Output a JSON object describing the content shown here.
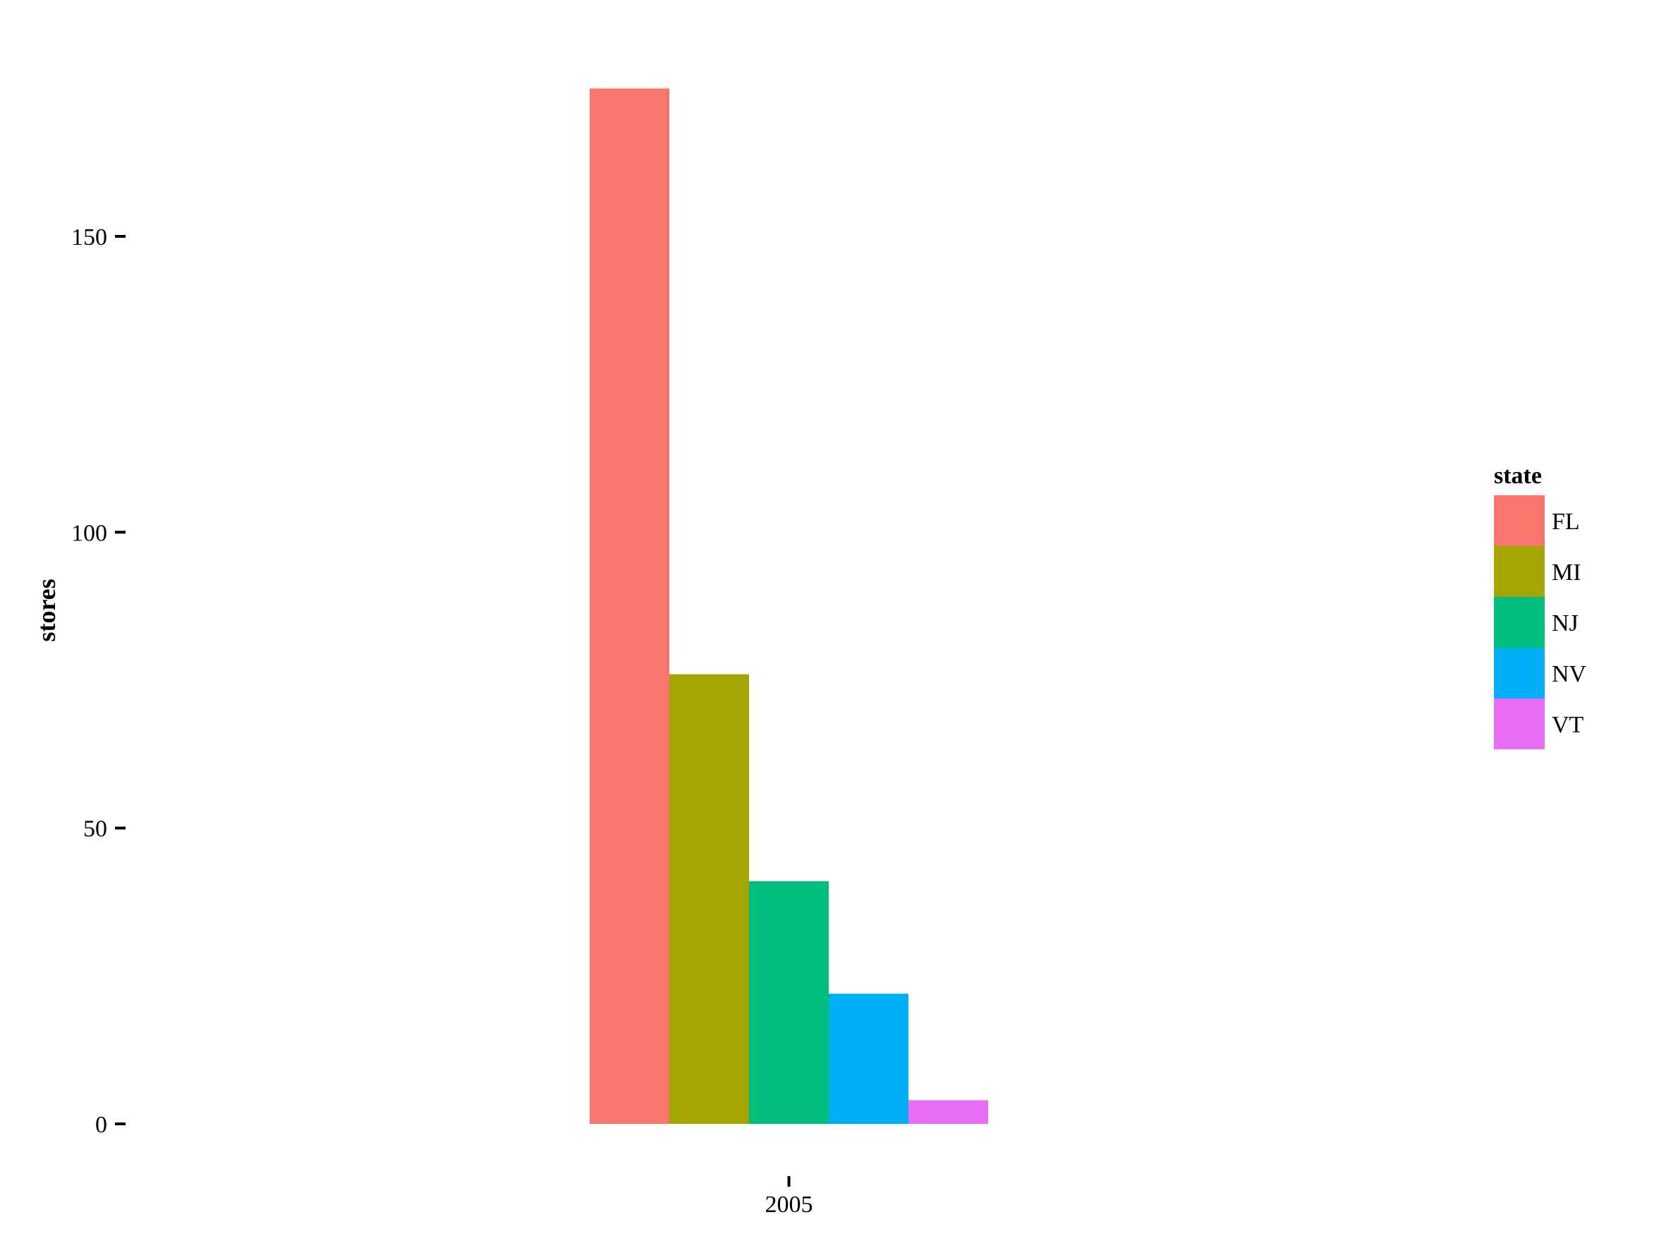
{
  "chart_data": {
    "type": "bar",
    "categories": [
      "2005"
    ],
    "series": [
      {
        "name": "FL",
        "values": [
          175
        ],
        "color": "#F8766D"
      },
      {
        "name": "MI",
        "values": [
          76
        ],
        "color": "#A3A500"
      },
      {
        "name": "NJ",
        "values": [
          41
        ],
        "color": "#00BF7D"
      },
      {
        "name": "NV",
        "values": [
          22
        ],
        "color": "#00B0F6"
      },
      {
        "name": "VT",
        "values": [
          4
        ],
        "color": "#E76BF3"
      }
    ],
    "xlabel": "",
    "ylabel": "stores",
    "ylim": [
      0,
      175
    ],
    "yticks": [
      0,
      50,
      100,
      150
    ],
    "ytick_labels": [
      "0",
      "50",
      "100",
      "150"
    ],
    "legend": {
      "title": "state",
      "position": "right"
    },
    "grid": false,
    "bar_layout": "dodged"
  }
}
